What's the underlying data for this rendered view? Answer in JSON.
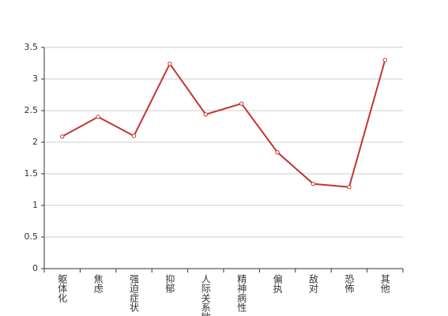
{
  "chart_data": {
    "type": "line",
    "categories": [
      "躯体化",
      "焦虑",
      "强迫症状",
      "抑郁",
      "人际关系敏感",
      "精神病性",
      "偏执",
      "敌对",
      "恐怖",
      "其他"
    ],
    "values": [
      2.09,
      2.4,
      2.1,
      3.24,
      2.44,
      2.61,
      1.84,
      1.34,
      1.29,
      3.3
    ],
    "color": "#c23531",
    "ylim": [
      0,
      3.5
    ],
    "yticks": [
      0,
      0.5,
      1,
      1.5,
      2,
      2.5,
      3,
      3.5
    ],
    "grid": true
  }
}
